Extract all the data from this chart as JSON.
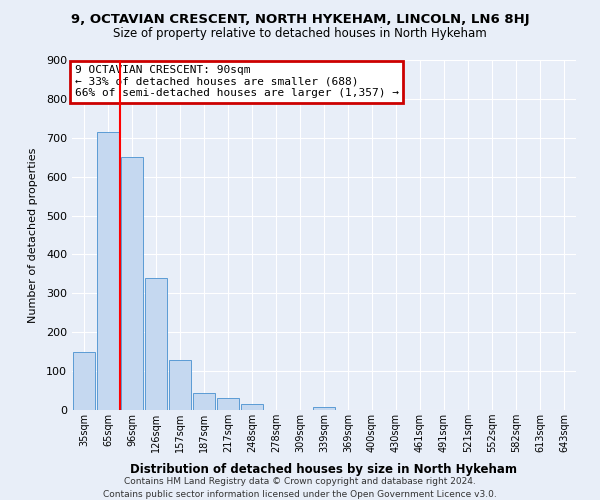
{
  "title": "9, OCTAVIAN CRESCENT, NORTH HYKEHAM, LINCOLN, LN6 8HJ",
  "subtitle": "Size of property relative to detached houses in North Hykeham",
  "xlabel": "Distribution of detached houses by size in North Hykeham",
  "ylabel": "Number of detached properties",
  "bar_values": [
    150,
    715,
    650,
    340,
    128,
    45,
    32,
    15,
    0,
    0,
    8,
    0,
    0,
    0,
    0,
    0,
    0,
    0,
    0,
    0,
    0
  ],
  "all_labels": [
    "35sqm",
    "65sqm",
    "96sqm",
    "126sqm",
    "157sqm",
    "187sqm",
    "217sqm",
    "248sqm",
    "278sqm",
    "309sqm",
    "339sqm",
    "369sqm",
    "400sqm",
    "430sqm",
    "461sqm",
    "491sqm",
    "521sqm",
    "552sqm",
    "582sqm",
    "613sqm",
    "643sqm"
  ],
  "bar_color": "#c5d8f0",
  "bar_edge_color": "#5b9bd5",
  "red_line_x": 1.5,
  "annotation_title": "9 OCTAVIAN CRESCENT: 90sqm",
  "annotation_line1": "← 33% of detached houses are smaller (688)",
  "annotation_line2": "66% of semi-detached houses are larger (1,357) →",
  "annotation_box_color": "#ffffff",
  "annotation_box_edge_color": "#cc0000",
  "ylim": [
    0,
    900
  ],
  "yticks": [
    0,
    100,
    200,
    300,
    400,
    500,
    600,
    700,
    800,
    900
  ],
  "footer1": "Contains HM Land Registry data © Crown copyright and database right 2024.",
  "footer2": "Contains public sector information licensed under the Open Government Licence v3.0.",
  "background_color": "#e8eef8",
  "grid_color": "#ffffff"
}
